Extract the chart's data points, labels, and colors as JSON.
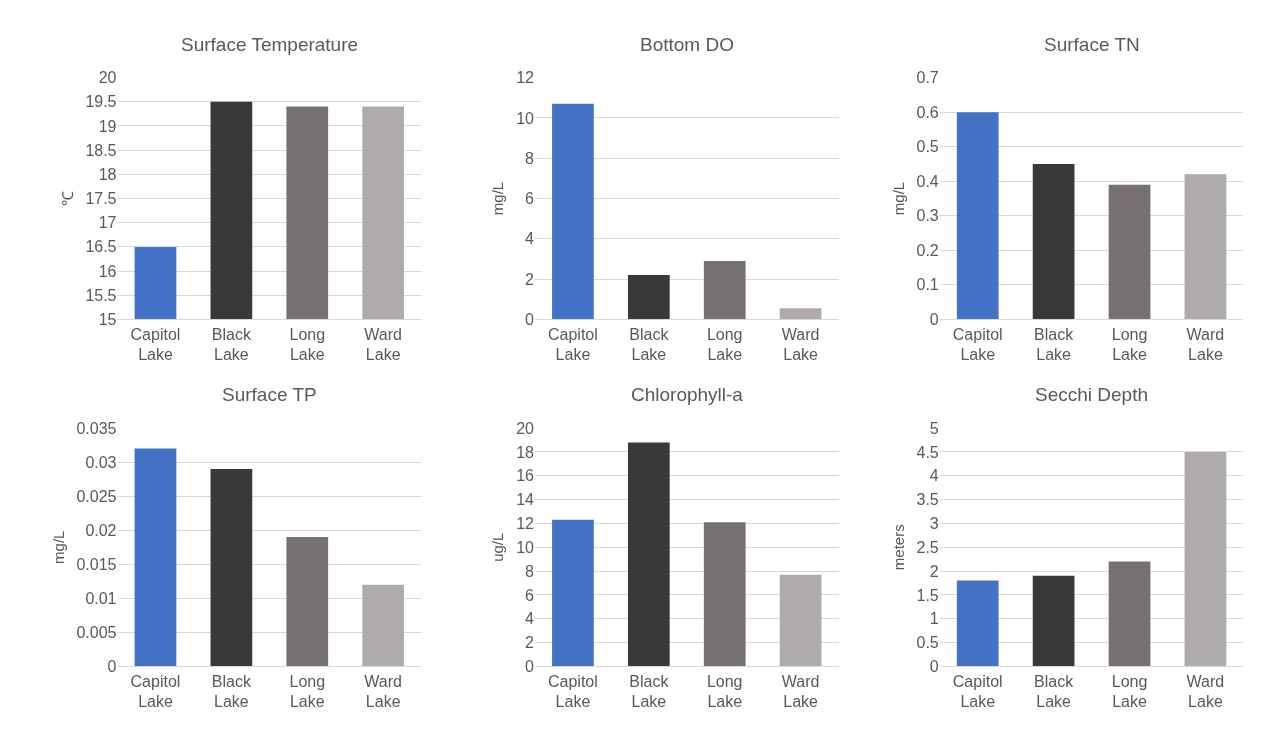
{
  "chart_data": [
    {
      "type": "bar",
      "title": "Surface Temperature",
      "ylabel": "℃",
      "categories": [
        "Capitol Lake",
        "Black Lake",
        "Long Lake",
        "Ward Lake"
      ],
      "values": [
        16.5,
        19.5,
        19.4,
        19.4
      ],
      "colors": [
        "#4472c4",
        "#3a3938",
        "#767170",
        "#afabab"
      ],
      "ylim": [
        15,
        20
      ],
      "yticks": [
        15,
        15.5,
        16,
        16.5,
        17,
        17.5,
        18,
        18.5,
        19,
        19.5,
        20
      ],
      "grid": "y"
    },
    {
      "type": "bar",
      "title": "Bottom DO",
      "ylabel": "mg/L",
      "categories": [
        "Capitol Lake",
        "Black Lake",
        "Long Lake",
        "Ward Lake"
      ],
      "values": [
        10.7,
        2.2,
        2.9,
        0.55
      ],
      "colors": [
        "#4472c4",
        "#3a3938",
        "#767170",
        "#afabab"
      ],
      "ylim": [
        0,
        12
      ],
      "yticks": [
        0,
        2,
        4,
        6,
        8,
        10,
        12
      ],
      "grid": "y"
    },
    {
      "type": "bar",
      "title": "Surface TN",
      "ylabel": "mg/L",
      "categories": [
        "Capitol Lake",
        "Black Lake",
        "Long Lake",
        "Ward Lake"
      ],
      "values": [
        0.6,
        0.45,
        0.39,
        0.42
      ],
      "colors": [
        "#4472c4",
        "#3a3938",
        "#767170",
        "#afabab"
      ],
      "ylim": [
        0,
        0.7
      ],
      "yticks": [
        0,
        0.1,
        0.2,
        0.3,
        0.4,
        0.5,
        0.6,
        0.7
      ],
      "grid": "y"
    },
    {
      "type": "bar",
      "title": "Surface TP",
      "ylabel": "mg/L",
      "categories": [
        "Capitol Lake",
        "Black Lake",
        "Long Lake",
        "Ward Lake"
      ],
      "values": [
        0.032,
        0.029,
        0.019,
        0.012
      ],
      "colors": [
        "#4472c4",
        "#3a3938",
        "#767170",
        "#afabab"
      ],
      "ylim": [
        0,
        0.035
      ],
      "yticks": [
        0,
        0.005,
        0.01,
        0.015,
        0.02,
        0.025,
        0.03,
        0.035
      ],
      "grid": "y"
    },
    {
      "type": "bar",
      "title": "Chlorophyll-a",
      "ylabel": "ug/L",
      "categories": [
        "Capitol Lake",
        "Black Lake",
        "Long Lake",
        "Ward Lake"
      ],
      "values": [
        12.3,
        18.8,
        12.1,
        7.7
      ],
      "colors": [
        "#4472c4",
        "#3a3938",
        "#767170",
        "#afabab"
      ],
      "ylim": [
        0,
        20
      ],
      "yticks": [
        0,
        2,
        4,
        6,
        8,
        10,
        12,
        14,
        16,
        18,
        20
      ],
      "grid": "y"
    },
    {
      "type": "bar",
      "title": "Secchi Depth",
      "ylabel": "meters",
      "categories": [
        "Capitol Lake",
        "Black Lake",
        "Long Lake",
        "Ward Lake"
      ],
      "values": [
        1.8,
        1.9,
        2.2,
        4.5
      ],
      "colors": [
        "#4472c4",
        "#3a3938",
        "#767170",
        "#afabab"
      ],
      "ylim": [
        0,
        5
      ],
      "yticks": [
        0,
        0.5,
        1,
        1.5,
        2,
        2.5,
        3,
        3.5,
        4,
        4.5,
        5
      ],
      "grid": "y"
    }
  ]
}
